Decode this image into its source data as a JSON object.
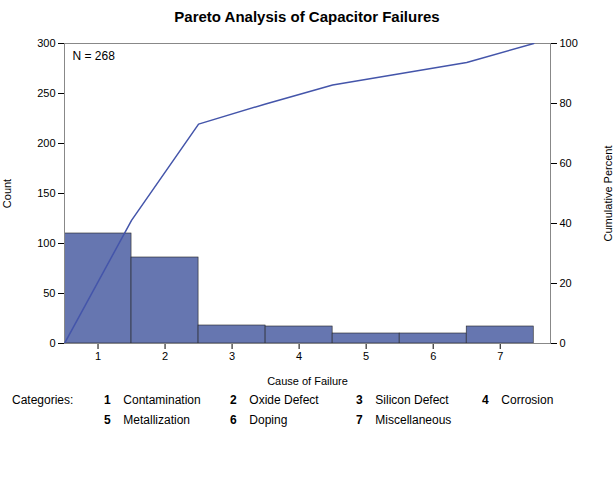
{
  "chart_data": {
    "type": "bar",
    "title": "Pareto Analysis of Capacitor Failures",
    "xlabel": "Cause of Failure",
    "ylabel": "Count",
    "y2label": "Cumulative Percent",
    "annotations": [
      "N = 268"
    ],
    "key_title": "Categories:",
    "key": [
      {
        "label": "1",
        "text": "Contamination"
      },
      {
        "label": "2",
        "text": "Oxide Defect"
      },
      {
        "label": "3",
        "text": "Silicon Defect"
      },
      {
        "label": "4",
        "text": "Corrosion"
      },
      {
        "label": "5",
        "text": "Metallization"
      },
      {
        "label": "6",
        "text": "Doping"
      },
      {
        "label": "7",
        "text": "Miscellaneous"
      }
    ],
    "series": [
      {
        "type": "bar",
        "color": "#6676b0",
        "x": [
          1,
          2,
          3,
          4,
          5,
          6,
          7
        ],
        "values": [
          110,
          86,
          18,
          17,
          10,
          10,
          17
        ]
      },
      {
        "type": "line",
        "axis": "y2",
        "color": "#4455aa",
        "x": [
          0.5,
          1.5,
          2.5,
          3.5,
          4.5,
          5.5,
          6.5,
          7.5
        ],
        "values": [
          0,
          41.04477611940298,
          73.13432835820896,
          79.85074626865672,
          86.19402985074626,
          89.92537313432835,
          93.65671641791045,
          100
        ]
      }
    ],
    "xlim": [
      0.5,
      7.75
    ],
    "xticks": [
      1,
      2,
      3,
      4,
      5,
      6,
      7
    ],
    "ylim": [
      0,
      300
    ],
    "yticks": [
      0,
      50,
      100,
      150,
      200,
      250,
      300
    ],
    "y2lim": [
      0,
      100
    ],
    "y2ticks": [
      0,
      20,
      40,
      60,
      80,
      100
    ],
    "grid": false
  }
}
